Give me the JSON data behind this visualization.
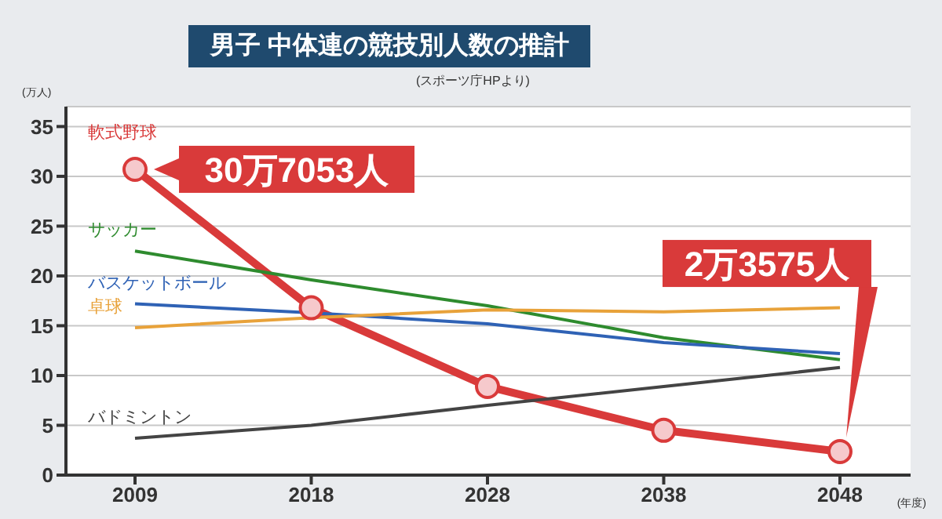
{
  "chart_data": {
    "type": "line",
    "title": "男子 中体連の競技別人数の推計",
    "xlabel": "(年度)",
    "ylabel": "(万人)",
    "categories": [
      "2009",
      "2018",
      "2028",
      "2038",
      "2048"
    ],
    "series": [
      {
        "name": "軟式野球",
        "color": "#d93a3a",
        "marker": "circle",
        "values": [
          30.7053,
          16.8,
          8.9,
          4.5,
          2.3575
        ]
      },
      {
        "name": "サッカー",
        "color": "#2e8b2e",
        "marker": "none",
        "values": [
          22.5,
          19.6,
          17.0,
          13.8,
          11.6
        ]
      },
      {
        "name": "バスケットボール",
        "color": "#2f62b5",
        "marker": "none",
        "values": [
          17.2,
          16.3,
          15.2,
          13.3,
          12.2
        ]
      },
      {
        "name": "卓球",
        "color": "#e8a23a",
        "marker": "none",
        "values": [
          14.8,
          15.8,
          16.6,
          16.4,
          16.8
        ]
      },
      {
        "name": "バドミントン",
        "color": "#444444",
        "marker": "none",
        "values": [
          3.7,
          5.0,
          7.0,
          8.9,
          10.8
        ]
      }
    ],
    "ylim": [
      0,
      37
    ],
    "yticks": [
      0,
      5,
      10,
      15,
      20,
      25,
      30,
      35
    ],
    "grid": "y",
    "legend": false,
    "annotations": [
      "(スポーツ庁HPより)",
      {
        "text": "30万7053人",
        "x": "2009",
        "y": 30.7053
      },
      "2万3575人"
    ]
  }
}
